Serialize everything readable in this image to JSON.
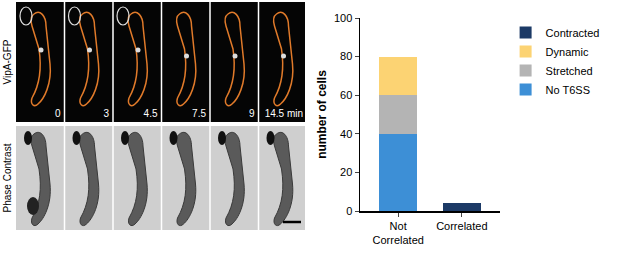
{
  "chart_data": {
    "type": "bar",
    "stacked": true,
    "categories": [
      "Not Correlated",
      "Correlated"
    ],
    "y_label": "number of cells",
    "series": [
      {
        "name": "No T6SS",
        "color": "#3d8fd6",
        "values": [
          40,
          0
        ]
      },
      {
        "name": "Stretched",
        "color": "#b4b4b4",
        "values": [
          20,
          0
        ]
      },
      {
        "name": "Dynamic",
        "color": "#fcd373",
        "values": [
          20,
          0
        ]
      },
      {
        "name": "Contracted",
        "color": "#1c3a66",
        "values": [
          0,
          4
        ]
      }
    ],
    "ylim": [
      0,
      100
    ],
    "yticks": [
      0,
      20,
      40,
      60,
      80,
      100
    ],
    "grid": false,
    "legend": "top right"
  },
  "image_panel": {
    "top_label": "VipA-GFP",
    "bottom_label": "Phase Contrast",
    "time_labels": [
      "0",
      "3",
      "4.5",
      "7.5",
      "9",
      "14.5 min"
    ]
  }
}
